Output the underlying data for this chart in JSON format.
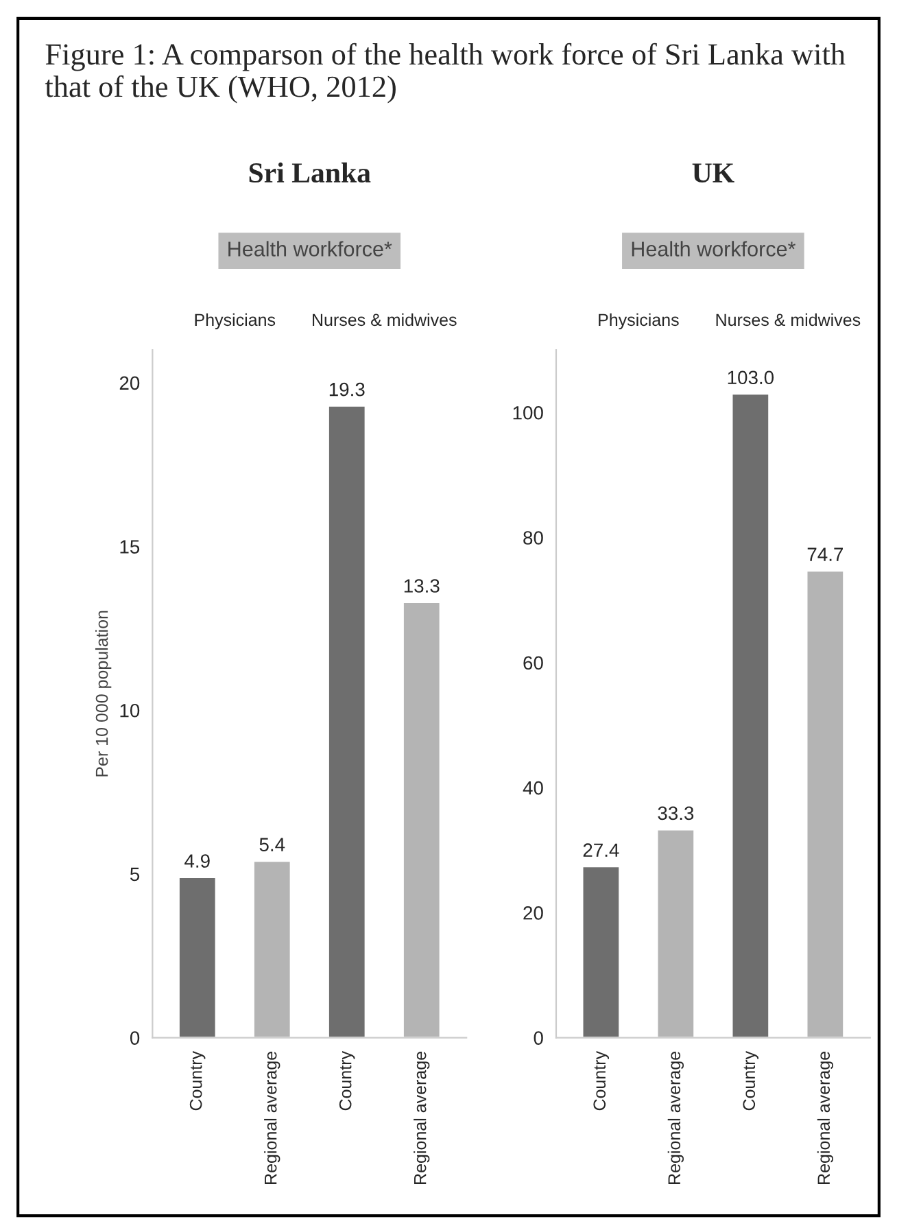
{
  "chart_data": [
    {
      "type": "bar",
      "title": "Sri Lanka",
      "ylabel": "Per 10 000 population",
      "annotations": [
        "Figure 1: A comparson of the health work force of Sri Lanka with that of the UK (WHO, 2012)",
        "Health workforce*",
        "Physicians",
        "Nurses & midwives"
      ],
      "categories": [
        "Country",
        "Regional average",
        "Country",
        "Regional average"
      ],
      "values": [
        4.9,
        5.4,
        19.3,
        13.3
      ],
      "colors": [
        "#6e6e6e",
        "#b4b4b4",
        "#6e6e6e",
        "#b4b4b4"
      ],
      "value_labels": [
        "4.9",
        "5.4",
        "19.3",
        "13.3"
      ],
      "ylim": [
        0,
        21
      ],
      "yticks": [
        0,
        5,
        10,
        15,
        20
      ],
      "grid": false,
      "legend": false
    },
    {
      "type": "bar",
      "title": "UK",
      "annotations": [
        "Health workforce*",
        "Physicians",
        "Nurses & midwives"
      ],
      "categories": [
        "Country",
        "Regional average",
        "Country",
        "Regional average"
      ],
      "values": [
        27.4,
        33.3,
        103.0,
        74.7
      ],
      "colors": [
        "#6e6e6e",
        "#b4b4b4",
        "#6e6e6e",
        "#b4b4b4"
      ],
      "value_labels": [
        "27.4",
        "33.3",
        "103.0",
        "74.7"
      ],
      "ylim": [
        0,
        110
      ],
      "yticks": [
        0,
        20,
        40,
        60,
        80,
        100
      ],
      "grid": false,
      "legend": false
    }
  ]
}
